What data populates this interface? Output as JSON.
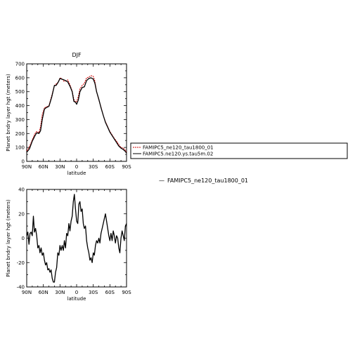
{
  "chart_data": [
    {
      "type": "line",
      "title": "DJF",
      "xlabel": "latitude",
      "ylabel": "Planet bndry layer hgt (meters)",
      "xlim": [
        -90,
        90
      ],
      "ylim": [
        0,
        700
      ],
      "xticks": [
        -90,
        -60,
        -30,
        0,
        30,
        60,
        90
      ],
      "xtick_labels": [
        "90N",
        "60N",
        "30N",
        "0",
        "30S",
        "60S",
        "90S"
      ],
      "yticks": [
        0,
        100,
        200,
        300,
        400,
        500,
        600,
        700
      ],
      "ytick_labels": [
        "0",
        "100",
        "200",
        "300",
        "400",
        "500",
        "600",
        "700"
      ],
      "grid": false,
      "legend_position": "right",
      "series": [
        {
          "name": "FAMIPC5_ne120_tau1800_01",
          "color": "#cc0000",
          "style": "dashed",
          "x": [
            -90,
            -85,
            -80,
            -75,
            -72,
            -68,
            -65,
            -62,
            -58,
            -55,
            -50,
            -45,
            -40,
            -37,
            -33,
            -30,
            -27,
            -23,
            -20,
            -16,
            -12,
            -8,
            -5,
            -2,
            0,
            3,
            6,
            10,
            14,
            18,
            22,
            26,
            30,
            33,
            36,
            40,
            44,
            48,
            52,
            56,
            60,
            64,
            68,
            72,
            76,
            80,
            84,
            87,
            90
          ],
          "y": [
            75,
            105,
            155,
            200,
            215,
            205,
            250,
            335,
            385,
            390,
            400,
            470,
            545,
            555,
            570,
            600,
            595,
            575,
            575,
            585,
            550,
            505,
            445,
            425,
            430,
            465,
            520,
            545,
            560,
            600,
            605,
            615,
            610,
            575,
            500,
            440,
            390,
            330,
            285,
            250,
            215,
            190,
            165,
            145,
            120,
            100,
            95,
            85,
            65
          ]
        },
        {
          "name": "FAMIPC5.ne120.ys.tau5m.02",
          "color": "#000000",
          "style": "solid",
          "x": [
            -90,
            -85,
            -80,
            -75,
            -72,
            -68,
            -65,
            -62,
            -58,
            -55,
            -50,
            -45,
            -40,
            -37,
            -33,
            -30,
            -27,
            -23,
            -20,
            -16,
            -12,
            -8,
            -5,
            -2,
            0,
            3,
            6,
            10,
            14,
            18,
            22,
            26,
            30,
            33,
            36,
            40,
            44,
            48,
            52,
            56,
            60,
            64,
            68,
            72,
            76,
            80,
            84,
            87,
            90
          ],
          "y": [
            65,
            90,
            145,
            185,
            205,
            200,
            220,
            300,
            375,
            385,
            395,
            460,
            545,
            545,
            570,
            595,
            590,
            585,
            580,
            570,
            540,
            500,
            430,
            425,
            410,
            440,
            500,
            530,
            535,
            580,
            595,
            600,
            590,
            560,
            500,
            445,
            385,
            330,
            280,
            245,
            210,
            185,
            160,
            135,
            110,
            95,
            85,
            75,
            60
          ]
        }
      ]
    },
    {
      "type": "line",
      "title": "",
      "xlabel": "latitude",
      "ylabel": "Planet bndry layer hgt (meters)",
      "xlim": [
        -90,
        90
      ],
      "ylim": [
        -40,
        40
      ],
      "xticks": [
        -90,
        -60,
        -30,
        0,
        30,
        60,
        90
      ],
      "xtick_labels": [
        "90N",
        "60N",
        "30N",
        "0",
        "30S",
        "60S",
        "90S"
      ],
      "yticks": [
        -40,
        -20,
        0,
        20,
        40
      ],
      "ytick_labels": [
        "-40",
        "-20",
        "0",
        "20",
        "40"
      ],
      "grid": false,
      "legend_position": "right",
      "series": [
        {
          "name": "FAMIPC5_ne120_tau1800_01",
          "color": "#000000",
          "style": "solid",
          "x": [
            -90,
            -88,
            -86,
            -84,
            -82,
            -80,
            -78,
            -76,
            -74,
            -72,
            -70,
            -68,
            -66,
            -64,
            -62,
            -60,
            -58,
            -56,
            -54,
            -52,
            -50,
            -48,
            -46,
            -44,
            -42,
            -40,
            -38,
            -36,
            -34,
            -32,
            -30,
            -28,
            -26,
            -24,
            -22,
            -20,
            -18,
            -16,
            -14,
            -12,
            -10,
            -8,
            -6,
            -4,
            -2,
            0,
            2,
            4,
            6,
            8,
            10,
            12,
            14,
            16,
            18,
            20,
            22,
            24,
            26,
            28,
            30,
            32,
            34,
            36,
            38,
            40,
            42,
            44,
            46,
            48,
            50,
            52,
            54,
            56,
            58,
            60,
            62,
            64,
            66,
            68,
            70,
            72,
            74,
            76,
            78,
            80,
            82,
            84,
            86,
            88,
            90
          ],
          "y": [
            2,
            5,
            -5,
            4,
            5,
            2,
            18,
            5,
            8,
            2,
            -8,
            -6,
            -12,
            -8,
            -14,
            -12,
            -18,
            -22,
            -20,
            -26,
            -25,
            -28,
            -26,
            -33,
            -36,
            -36,
            -28,
            -24,
            -12,
            -14,
            -6,
            -10,
            -6,
            -10,
            -2,
            -8,
            4,
            2,
            12,
            6,
            14,
            18,
            30,
            36,
            24,
            14,
            12,
            28,
            30,
            22,
            24,
            12,
            8,
            10,
            -2,
            -8,
            -12,
            -18,
            -16,
            -20,
            -12,
            -14,
            -6,
            -2,
            -4,
            0,
            -4,
            4,
            8,
            12,
            16,
            20,
            14,
            8,
            2,
            -2,
            4,
            -2,
            6,
            2,
            -4,
            2,
            0,
            -8,
            -12,
            0,
            6,
            2,
            -2,
            10,
            12
          ]
        }
      ]
    }
  ],
  "legend_note": "FAMIPC5_ne120_tau1800_01",
  "legend_note_prefix": "—"
}
